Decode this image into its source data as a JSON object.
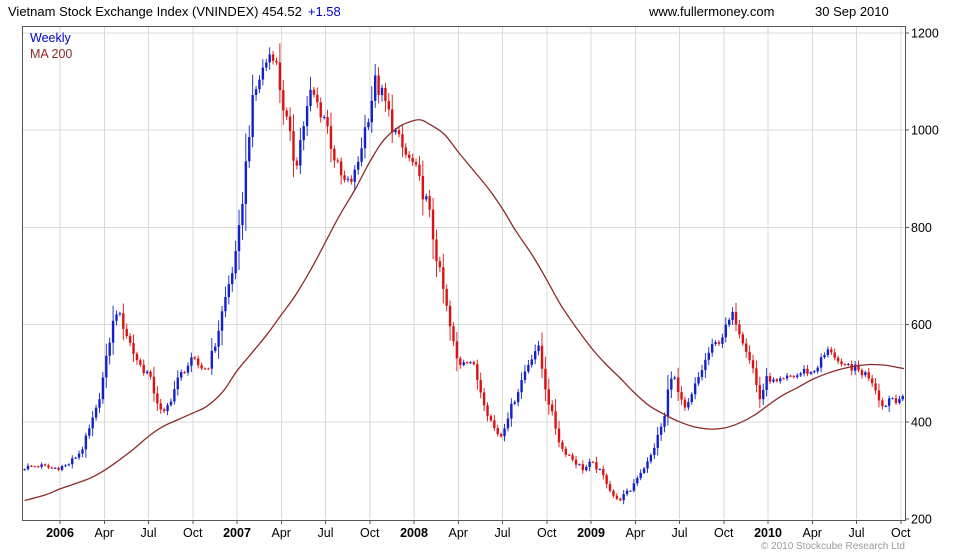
{
  "header": {
    "title": "Vietnam Stock Exchange Index (VNINDEX) 454.52",
    "change": "+1.58",
    "website": "www.fullermoney.com",
    "date": "30 Sep 2010"
  },
  "legend": {
    "series1": "Weekly",
    "series2": "MA 200"
  },
  "footer": {
    "copyright": "© 2010 Stockcube Research Ltd"
  },
  "colors": {
    "up": "#1122cc",
    "down": "#dd1111",
    "ma": "#8b2b2b",
    "grid": "#d9d9d9",
    "border": "#555555",
    "change": "#0000cc",
    "legend_weekly": "#0000cc",
    "text": "#000000",
    "watermark": "#9a9a9a"
  },
  "chart_data": {
    "type": "candlestick",
    "title": "Vietnam Stock Exchange Index (VNINDEX)",
    "timeframe": "Weekly",
    "overlay": "MA 200",
    "last_price": 454.52,
    "change": 1.58,
    "date": "30 Sep 2010",
    "x_range": [
      2005.79,
      2010.79
    ],
    "y_range": [
      200,
      1200
    ],
    "grid": true,
    "legend_position": "top-left",
    "y_ticks": [
      200,
      400,
      600,
      800,
      1000,
      1200
    ],
    "x_ticks": [
      {
        "t": 2006.0,
        "label": "2006",
        "bold": true
      },
      {
        "t": 2006.25,
        "label": "Apr"
      },
      {
        "t": 2006.5,
        "label": "Jul"
      },
      {
        "t": 2006.75,
        "label": "Oct"
      },
      {
        "t": 2007.0,
        "label": "2007",
        "bold": true
      },
      {
        "t": 2007.25,
        "label": "Apr"
      },
      {
        "t": 2007.5,
        "label": "Jul"
      },
      {
        "t": 2007.75,
        "label": "Oct"
      },
      {
        "t": 2008.0,
        "label": "2008",
        "bold": true
      },
      {
        "t": 2008.25,
        "label": "Apr"
      },
      {
        "t": 2008.5,
        "label": "Jul"
      },
      {
        "t": 2008.75,
        "label": "Oct"
      },
      {
        "t": 2009.0,
        "label": "2009",
        "bold": true
      },
      {
        "t": 2009.25,
        "label": "Apr"
      },
      {
        "t": 2009.5,
        "label": "Jul"
      },
      {
        "t": 2009.75,
        "label": "Oct"
      },
      {
        "t": 2010.0,
        "label": "2010",
        "bold": true
      },
      {
        "t": 2010.25,
        "label": "Apr"
      },
      {
        "t": 2010.5,
        "label": "Jul"
      },
      {
        "t": 2010.75,
        "label": "Oct"
      }
    ],
    "weekly": {
      "start": 2005.8,
      "count": 259,
      "noise": 0.018,
      "close_anchors": [
        [
          2005.8,
          306
        ],
        [
          2005.88,
          310
        ],
        [
          2005.96,
          304
        ],
        [
          2006.04,
          310
        ],
        [
          2006.12,
          340
        ],
        [
          2006.17,
          388
        ],
        [
          2006.21,
          430
        ],
        [
          2006.25,
          503
        ],
        [
          2006.29,
          588
        ],
        [
          2006.32,
          630
        ],
        [
          2006.36,
          596
        ],
        [
          2006.42,
          538
        ],
        [
          2006.46,
          512
        ],
        [
          2006.5,
          498
        ],
        [
          2006.54,
          452
        ],
        [
          2006.58,
          410
        ],
        [
          2006.62,
          442
        ],
        [
          2006.67,
          490
        ],
        [
          2006.71,
          512
        ],
        [
          2006.75,
          526
        ],
        [
          2006.79,
          514
        ],
        [
          2006.83,
          508
        ],
        [
          2006.88,
          562
        ],
        [
          2006.92,
          633
        ],
        [
          2006.96,
          692
        ],
        [
          2007.0,
          751
        ],
        [
          2007.04,
          892
        ],
        [
          2007.08,
          1041
        ],
        [
          2007.12,
          1102
        ],
        [
          2007.16,
          1137
        ],
        [
          2007.2,
          1170
        ],
        [
          2007.23,
          1118
        ],
        [
          2007.25,
          1071
        ],
        [
          2007.29,
          1000
        ],
        [
          2007.33,
          925
        ],
        [
          2007.37,
          1002
        ],
        [
          2007.42,
          1080
        ],
        [
          2007.46,
          1048
        ],
        [
          2007.5,
          1024
        ],
        [
          2007.54,
          958
        ],
        [
          2007.58,
          908
        ],
        [
          2007.62,
          886
        ],
        [
          2007.67,
          910
        ],
        [
          2007.71,
          982
        ],
        [
          2007.75,
          1046
        ],
        [
          2007.78,
          1098
        ],
        [
          2007.83,
          1064
        ],
        [
          2007.88,
          1008
        ],
        [
          2007.92,
          972
        ],
        [
          2007.96,
          944
        ],
        [
          2008.0,
          927
        ],
        [
          2008.04,
          882
        ],
        [
          2008.08,
          844
        ],
        [
          2008.12,
          752
        ],
        [
          2008.17,
          663
        ],
        [
          2008.21,
          582
        ],
        [
          2008.25,
          516
        ],
        [
          2008.29,
          532
        ],
        [
          2008.33,
          522
        ],
        [
          2008.37,
          472
        ],
        [
          2008.42,
          414
        ],
        [
          2008.46,
          382
        ],
        [
          2008.49,
          370
        ],
        [
          2008.53,
          412
        ],
        [
          2008.58,
          457
        ],
        [
          2008.62,
          498
        ],
        [
          2008.67,
          540
        ],
        [
          2008.7,
          556
        ],
        [
          2008.75,
          456
        ],
        [
          2008.79,
          402
        ],
        [
          2008.83,
          347
        ],
        [
          2008.88,
          330
        ],
        [
          2008.92,
          314
        ],
        [
          2008.96,
          302
        ],
        [
          2009.0,
          316
        ],
        [
          2009.04,
          303
        ],
        [
          2009.08,
          282
        ],
        [
          2009.12,
          252
        ],
        [
          2009.15,
          237
        ],
        [
          2009.19,
          250
        ],
        [
          2009.23,
          262
        ],
        [
          2009.25,
          281
        ],
        [
          2009.29,
          302
        ],
        [
          2009.33,
          321
        ],
        [
          2009.37,
          362
        ],
        [
          2009.42,
          415
        ],
        [
          2009.44,
          480
        ],
        [
          2009.46,
          505
        ],
        [
          2009.5,
          448
        ],
        [
          2009.53,
          424
        ],
        [
          2009.56,
          442
        ],
        [
          2009.58,
          466
        ],
        [
          2009.62,
          502
        ],
        [
          2009.67,
          546
        ],
        [
          2009.71,
          562
        ],
        [
          2009.75,
          582
        ],
        [
          2009.79,
          614
        ],
        [
          2009.81,
          620
        ],
        [
          2009.84,
          586
        ],
        [
          2009.88,
          550
        ],
        [
          2009.92,
          504
        ],
        [
          2009.95,
          444
        ],
        [
          2010.0,
          494
        ],
        [
          2010.04,
          478
        ],
        [
          2010.08,
          482
        ],
        [
          2010.12,
          492
        ],
        [
          2010.17,
          496
        ],
        [
          2010.21,
          506
        ],
        [
          2010.25,
          499
        ],
        [
          2010.29,
          522
        ],
        [
          2010.33,
          542
        ],
        [
          2010.36,
          548
        ],
        [
          2010.4,
          520
        ],
        [
          2010.42,
          507
        ],
        [
          2010.46,
          516
        ],
        [
          2010.5,
          507
        ],
        [
          2010.54,
          500
        ],
        [
          2010.58,
          492
        ],
        [
          2010.62,
          458
        ],
        [
          2010.65,
          428
        ],
        [
          2010.69,
          452
        ],
        [
          2010.73,
          446
        ],
        [
          2010.77,
          454.52
        ]
      ]
    },
    "ma200_anchors": [
      [
        2005.8,
        238
      ],
      [
        2005.92,
        250
      ],
      [
        2006.0,
        262
      ],
      [
        2006.08,
        272
      ],
      [
        2006.17,
        284
      ],
      [
        2006.25,
        300
      ],
      [
        2006.33,
        320
      ],
      [
        2006.42,
        345
      ],
      [
        2006.5,
        370
      ],
      [
        2006.58,
        390
      ],
      [
        2006.67,
        405
      ],
      [
        2006.75,
        418
      ],
      [
        2006.83,
        432
      ],
      [
        2006.92,
        462
      ],
      [
        2007.0,
        505
      ],
      [
        2007.08,
        540
      ],
      [
        2007.17,
        580
      ],
      [
        2007.25,
        620
      ],
      [
        2007.33,
        660
      ],
      [
        2007.42,
        715
      ],
      [
        2007.5,
        770
      ],
      [
        2007.58,
        825
      ],
      [
        2007.67,
        880
      ],
      [
        2007.75,
        935
      ],
      [
        2007.83,
        980
      ],
      [
        2007.92,
        1008
      ],
      [
        2008.0,
        1020
      ],
      [
        2008.04,
        1021
      ],
      [
        2008.08,
        1014
      ],
      [
        2008.17,
        992
      ],
      [
        2008.25,
        955
      ],
      [
        2008.33,
        920
      ],
      [
        2008.42,
        880
      ],
      [
        2008.5,
        838
      ],
      [
        2008.58,
        790
      ],
      [
        2008.67,
        742
      ],
      [
        2008.75,
        692
      ],
      [
        2008.83,
        640
      ],
      [
        2008.92,
        592
      ],
      [
        2009.0,
        553
      ],
      [
        2009.08,
        520
      ],
      [
        2009.17,
        488
      ],
      [
        2009.25,
        458
      ],
      [
        2009.33,
        433
      ],
      [
        2009.42,
        414
      ],
      [
        2009.5,
        400
      ],
      [
        2009.58,
        390
      ],
      [
        2009.67,
        385
      ],
      [
        2009.75,
        387
      ],
      [
        2009.83,
        396
      ],
      [
        2009.92,
        413
      ],
      [
        2010.0,
        434
      ],
      [
        2010.08,
        454
      ],
      [
        2010.17,
        471
      ],
      [
        2010.25,
        487
      ],
      [
        2010.33,
        499
      ],
      [
        2010.42,
        509
      ],
      [
        2010.5,
        515
      ],
      [
        2010.58,
        518
      ],
      [
        2010.67,
        516
      ],
      [
        2010.73,
        512
      ],
      [
        2010.79,
        508
      ]
    ]
  }
}
